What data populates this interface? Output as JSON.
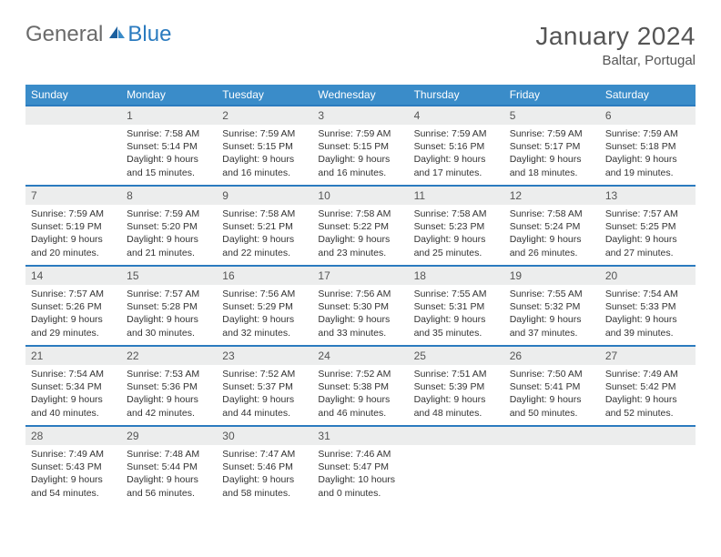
{
  "logo": {
    "general": "General",
    "blue": "Blue"
  },
  "title": "January 2024",
  "location": "Baltar, Portugal",
  "colors": {
    "header_bg": "#3a8cc9",
    "header_text": "#ffffff",
    "border": "#2b7bbf",
    "daynum_bg": "#eceded",
    "text": "#333333",
    "title": "#555555",
    "logo_gray": "#6b6b6b",
    "logo_blue": "#2b7bbf",
    "background": "#ffffff"
  },
  "day_headers": [
    "Sunday",
    "Monday",
    "Tuesday",
    "Wednesday",
    "Thursday",
    "Friday",
    "Saturday"
  ],
  "weeks": [
    [
      {
        "blank": true
      },
      {
        "n": "1",
        "sr": "Sunrise: 7:58 AM",
        "ss": "Sunset: 5:14 PM",
        "dl": "Daylight: 9 hours and 15 minutes."
      },
      {
        "n": "2",
        "sr": "Sunrise: 7:59 AM",
        "ss": "Sunset: 5:15 PM",
        "dl": "Daylight: 9 hours and 16 minutes."
      },
      {
        "n": "3",
        "sr": "Sunrise: 7:59 AM",
        "ss": "Sunset: 5:15 PM",
        "dl": "Daylight: 9 hours and 16 minutes."
      },
      {
        "n": "4",
        "sr": "Sunrise: 7:59 AM",
        "ss": "Sunset: 5:16 PM",
        "dl": "Daylight: 9 hours and 17 minutes."
      },
      {
        "n": "5",
        "sr": "Sunrise: 7:59 AM",
        "ss": "Sunset: 5:17 PM",
        "dl": "Daylight: 9 hours and 18 minutes."
      },
      {
        "n": "6",
        "sr": "Sunrise: 7:59 AM",
        "ss": "Sunset: 5:18 PM",
        "dl": "Daylight: 9 hours and 19 minutes."
      }
    ],
    [
      {
        "n": "7",
        "sr": "Sunrise: 7:59 AM",
        "ss": "Sunset: 5:19 PM",
        "dl": "Daylight: 9 hours and 20 minutes."
      },
      {
        "n": "8",
        "sr": "Sunrise: 7:59 AM",
        "ss": "Sunset: 5:20 PM",
        "dl": "Daylight: 9 hours and 21 minutes."
      },
      {
        "n": "9",
        "sr": "Sunrise: 7:58 AM",
        "ss": "Sunset: 5:21 PM",
        "dl": "Daylight: 9 hours and 22 minutes."
      },
      {
        "n": "10",
        "sr": "Sunrise: 7:58 AM",
        "ss": "Sunset: 5:22 PM",
        "dl": "Daylight: 9 hours and 23 minutes."
      },
      {
        "n": "11",
        "sr": "Sunrise: 7:58 AM",
        "ss": "Sunset: 5:23 PM",
        "dl": "Daylight: 9 hours and 25 minutes."
      },
      {
        "n": "12",
        "sr": "Sunrise: 7:58 AM",
        "ss": "Sunset: 5:24 PM",
        "dl": "Daylight: 9 hours and 26 minutes."
      },
      {
        "n": "13",
        "sr": "Sunrise: 7:57 AM",
        "ss": "Sunset: 5:25 PM",
        "dl": "Daylight: 9 hours and 27 minutes."
      }
    ],
    [
      {
        "n": "14",
        "sr": "Sunrise: 7:57 AM",
        "ss": "Sunset: 5:26 PM",
        "dl": "Daylight: 9 hours and 29 minutes."
      },
      {
        "n": "15",
        "sr": "Sunrise: 7:57 AM",
        "ss": "Sunset: 5:28 PM",
        "dl": "Daylight: 9 hours and 30 minutes."
      },
      {
        "n": "16",
        "sr": "Sunrise: 7:56 AM",
        "ss": "Sunset: 5:29 PM",
        "dl": "Daylight: 9 hours and 32 minutes."
      },
      {
        "n": "17",
        "sr": "Sunrise: 7:56 AM",
        "ss": "Sunset: 5:30 PM",
        "dl": "Daylight: 9 hours and 33 minutes."
      },
      {
        "n": "18",
        "sr": "Sunrise: 7:55 AM",
        "ss": "Sunset: 5:31 PM",
        "dl": "Daylight: 9 hours and 35 minutes."
      },
      {
        "n": "19",
        "sr": "Sunrise: 7:55 AM",
        "ss": "Sunset: 5:32 PM",
        "dl": "Daylight: 9 hours and 37 minutes."
      },
      {
        "n": "20",
        "sr": "Sunrise: 7:54 AM",
        "ss": "Sunset: 5:33 PM",
        "dl": "Daylight: 9 hours and 39 minutes."
      }
    ],
    [
      {
        "n": "21",
        "sr": "Sunrise: 7:54 AM",
        "ss": "Sunset: 5:34 PM",
        "dl": "Daylight: 9 hours and 40 minutes."
      },
      {
        "n": "22",
        "sr": "Sunrise: 7:53 AM",
        "ss": "Sunset: 5:36 PM",
        "dl": "Daylight: 9 hours and 42 minutes."
      },
      {
        "n": "23",
        "sr": "Sunrise: 7:52 AM",
        "ss": "Sunset: 5:37 PM",
        "dl": "Daylight: 9 hours and 44 minutes."
      },
      {
        "n": "24",
        "sr": "Sunrise: 7:52 AM",
        "ss": "Sunset: 5:38 PM",
        "dl": "Daylight: 9 hours and 46 minutes."
      },
      {
        "n": "25",
        "sr": "Sunrise: 7:51 AM",
        "ss": "Sunset: 5:39 PM",
        "dl": "Daylight: 9 hours and 48 minutes."
      },
      {
        "n": "26",
        "sr": "Sunrise: 7:50 AM",
        "ss": "Sunset: 5:41 PM",
        "dl": "Daylight: 9 hours and 50 minutes."
      },
      {
        "n": "27",
        "sr": "Sunrise: 7:49 AM",
        "ss": "Sunset: 5:42 PM",
        "dl": "Daylight: 9 hours and 52 minutes."
      }
    ],
    [
      {
        "n": "28",
        "sr": "Sunrise: 7:49 AM",
        "ss": "Sunset: 5:43 PM",
        "dl": "Daylight: 9 hours and 54 minutes."
      },
      {
        "n": "29",
        "sr": "Sunrise: 7:48 AM",
        "ss": "Sunset: 5:44 PM",
        "dl": "Daylight: 9 hours and 56 minutes."
      },
      {
        "n": "30",
        "sr": "Sunrise: 7:47 AM",
        "ss": "Sunset: 5:46 PM",
        "dl": "Daylight: 9 hours and 58 minutes."
      },
      {
        "n": "31",
        "sr": "Sunrise: 7:46 AM",
        "ss": "Sunset: 5:47 PM",
        "dl": "Daylight: 10 hours and 0 minutes."
      },
      {
        "blank": true
      },
      {
        "blank": true
      },
      {
        "blank": true
      }
    ]
  ]
}
